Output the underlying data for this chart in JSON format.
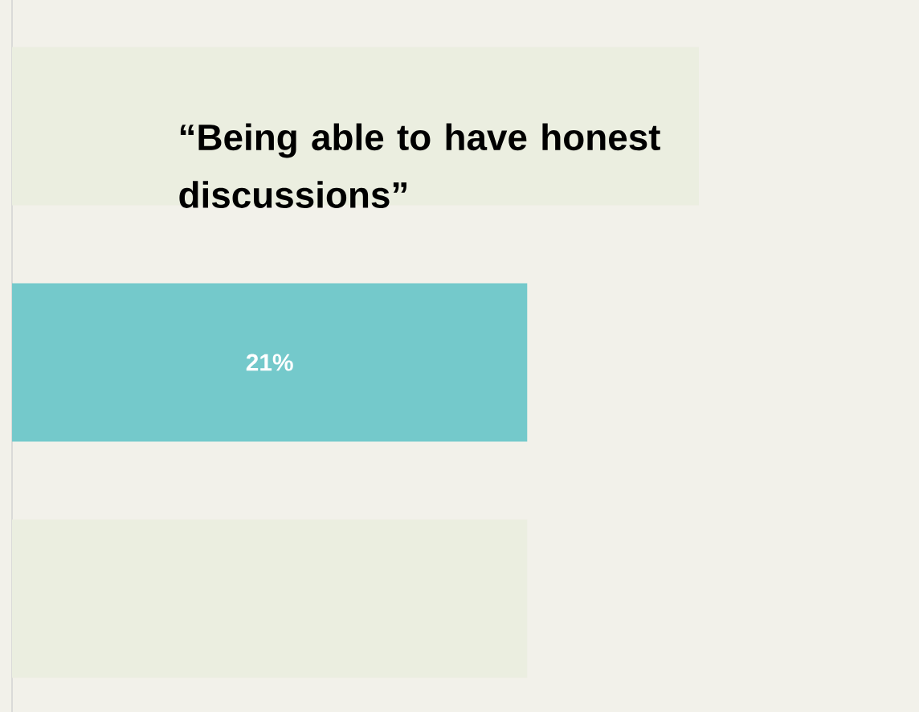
{
  "chart_data": {
    "type": "bar",
    "orientation": "horizontal",
    "title": "“Being able to have honest discussions”",
    "categories": [
      null,
      null,
      null
    ],
    "values": [
      28,
      21,
      21
    ],
    "value_labels": [
      null,
      "21%",
      null
    ],
    "colors": [
      "#ebeee0",
      "#74c9cb",
      "#ebeee0"
    ]
  }
}
